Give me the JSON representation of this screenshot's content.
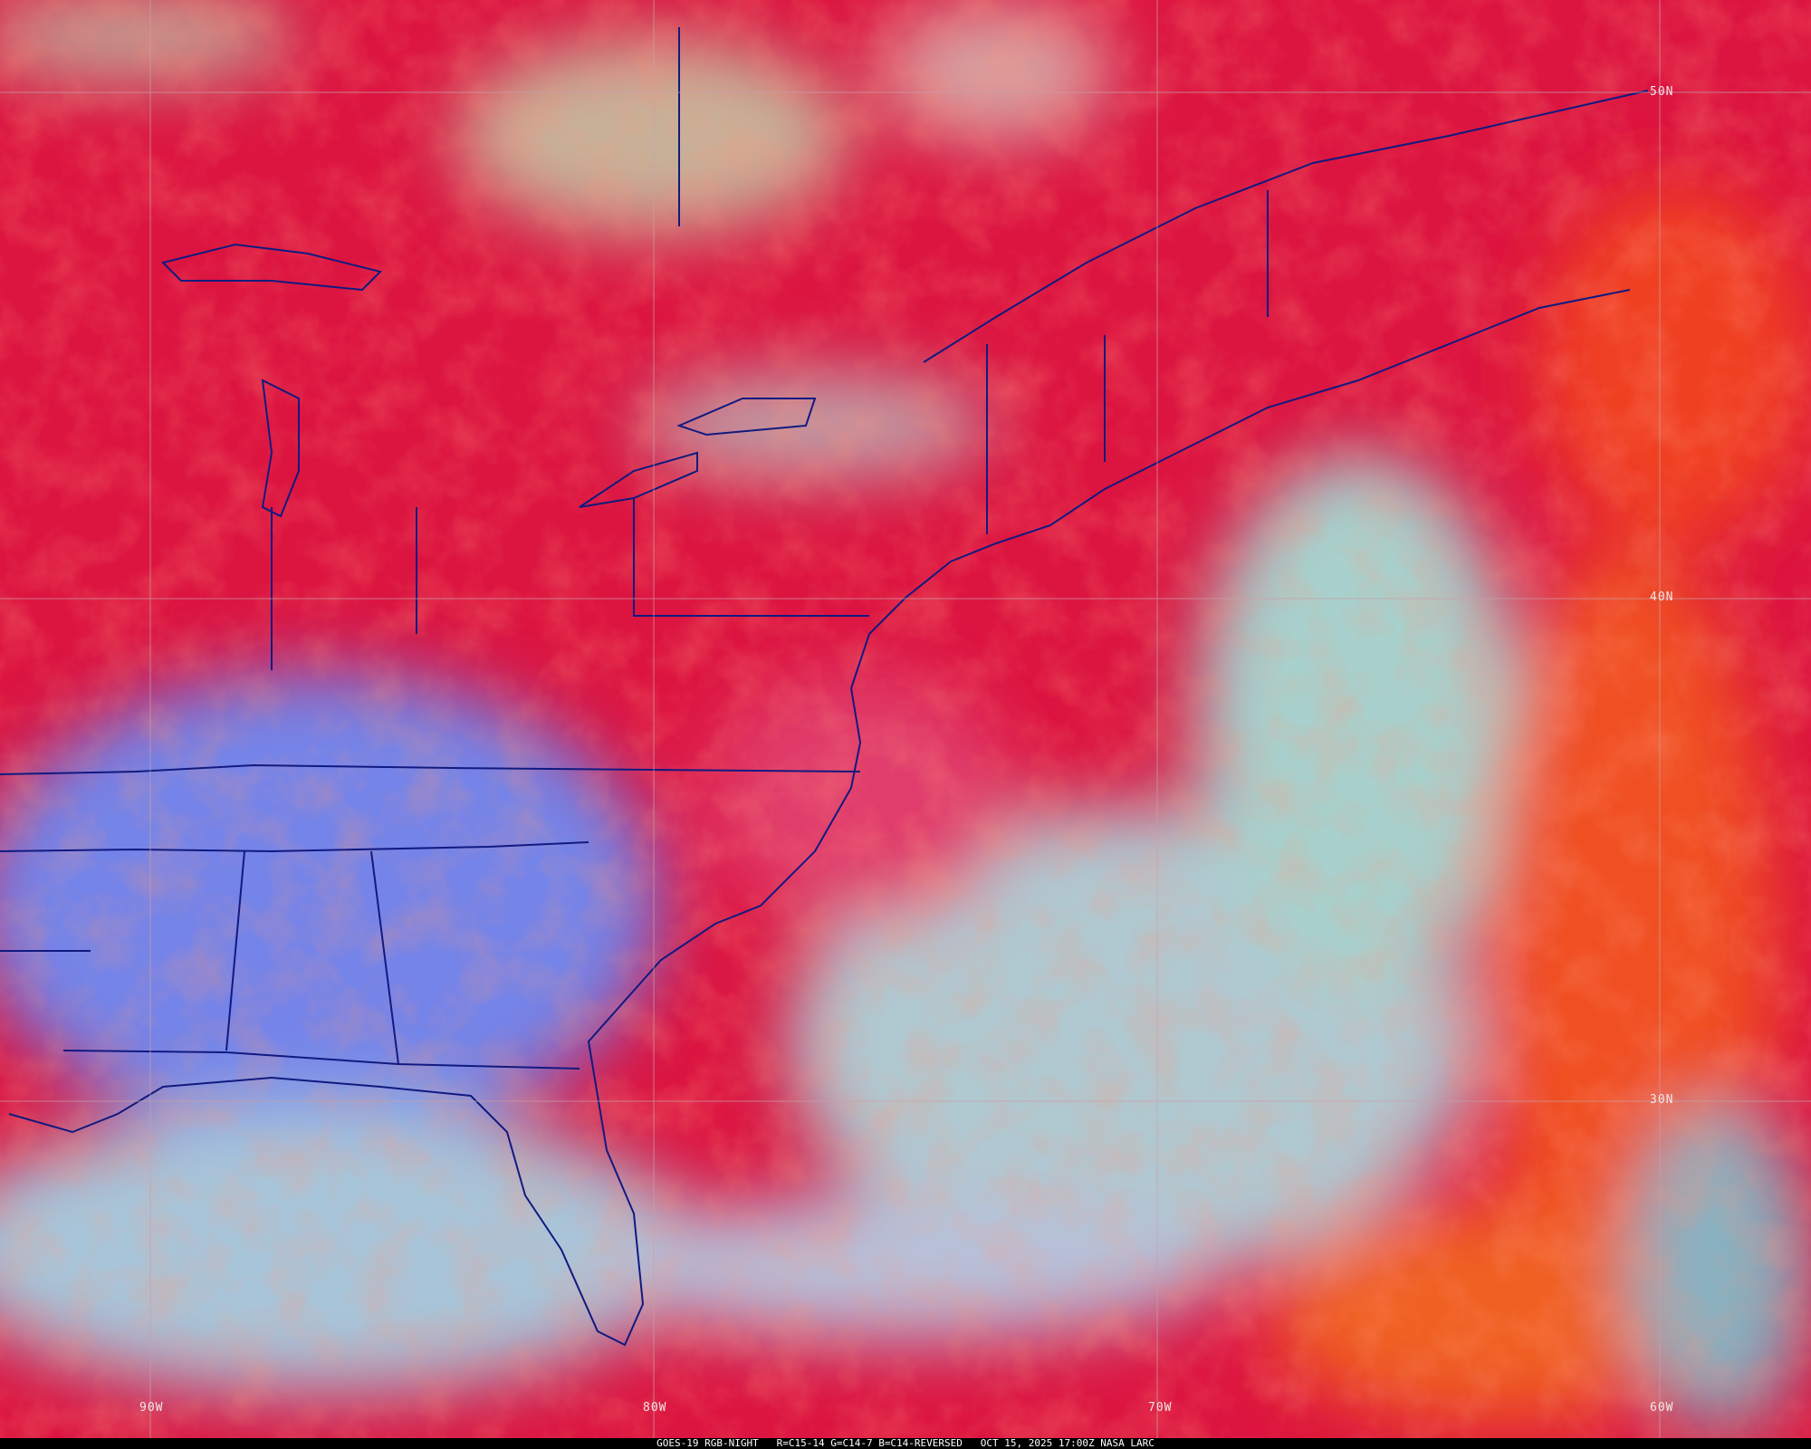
{
  "caption": "GOES-19 RGB-NIGHT   R=C15-14 G=C14-7 B=C14-REVERSED   OCT 15, 2025 17:00Z NASA LARC",
  "grid": {
    "latitudes": [
      "50N",
      "40N",
      "30N"
    ],
    "longitudes": [
      "90W",
      "80W",
      "70W",
      "60W"
    ],
    "line_color": "#c8a0a8"
  },
  "colors": {
    "cold_cloud_red": "#e0103a",
    "warm_land_blue": "#7080e8",
    "low_cloud_cyan": "#a8c8d0",
    "high_cloud_orange": "#f06020",
    "boundaries": "#101a80"
  }
}
